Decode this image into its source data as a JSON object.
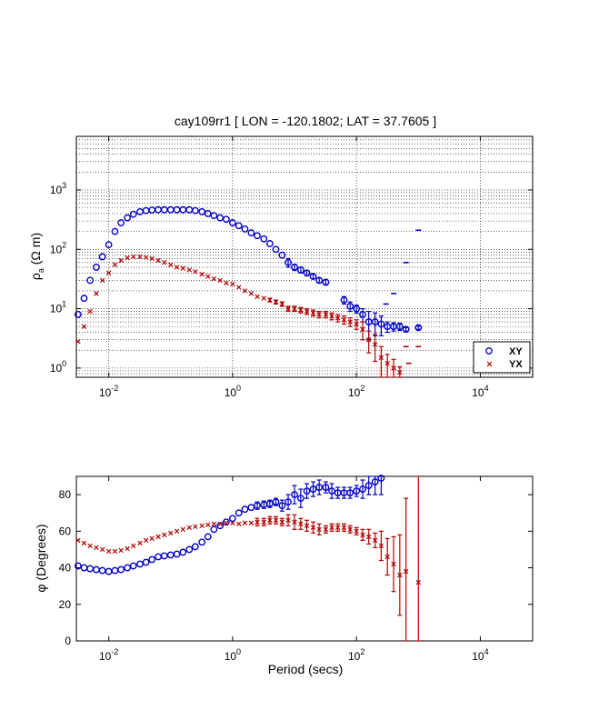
{
  "colors": {
    "xy": "#0000c8",
    "yx": "#b40000",
    "grid": "#000000"
  },
  "chart_data": [
    {
      "type": "scatter",
      "title": "cay109rr1 [ LON = -120.1802; LAT = 37.7605 ]",
      "xlabel": "",
      "ylabel_main": "ρ",
      "ylabel_sub": "a",
      "ylabel_unit": "(Ω m)",
      "xscale": "log",
      "yscale": "log",
      "xlim": [
        0.003,
        70000
      ],
      "ylim": [
        0.7,
        8000
      ],
      "grid": true,
      "x_ticks": [
        {
          "value": 0.01,
          "base": "10",
          "exp": "-2"
        },
        {
          "value": 1,
          "base": "10",
          "exp": "0"
        },
        {
          "value": 100,
          "base": "10",
          "exp": "2"
        },
        {
          "value": 10000,
          "base": "10",
          "exp": "4"
        }
      ],
      "y_ticks": [
        {
          "value": 1,
          "base": "10",
          "exp": "0"
        },
        {
          "value": 10,
          "base": "10",
          "exp": "1"
        },
        {
          "value": 100,
          "base": "10",
          "exp": "2"
        },
        {
          "value": 1000,
          "base": "10",
          "exp": "3"
        }
      ],
      "legend": {
        "position": "bottom-right",
        "entries": [
          "XY",
          "YX"
        ]
      },
      "series": [
        {
          "name": "XY",
          "marker": "circle",
          "x": [
            0.0032,
            0.004,
            0.005,
            0.0063,
            0.0079,
            0.01,
            0.0126,
            0.0158,
            0.02,
            0.025,
            0.032,
            0.04,
            0.05,
            0.063,
            0.079,
            0.1,
            0.126,
            0.158,
            0.2,
            0.25,
            0.32,
            0.4,
            0.5,
            0.63,
            0.79,
            1.0,
            1.26,
            1.58,
            2.0,
            2.5,
            3.2,
            4.0,
            5.0,
            6.3,
            7.9,
            10,
            12.6,
            15.8,
            20,
            25,
            32,
            63,
            79,
            100,
            126,
            158,
            200,
            251,
            316,
            398,
            501,
            631,
            1000
          ],
          "y": [
            8,
            15,
            30,
            50,
            75,
            120,
            200,
            280,
            340,
            390,
            430,
            450,
            460,
            465,
            465,
            465,
            465,
            465,
            465,
            450,
            430,
            400,
            370,
            340,
            320,
            280,
            250,
            220,
            190,
            170,
            150,
            125,
            100,
            80,
            60,
            50,
            45,
            40,
            35,
            30,
            28,
            14,
            11,
            10,
            8,
            6,
            6,
            5.5,
            5,
            5,
            5,
            4.5,
            4.8
          ],
          "err": [
            0,
            0,
            0,
            0,
            0,
            0,
            0,
            0,
            0,
            0,
            0,
            0,
            0,
            0,
            0,
            0,
            0,
            0,
            0,
            0,
            0,
            0,
            0,
            0,
            0,
            0,
            0,
            0,
            0,
            0,
            0,
            0,
            0,
            0,
            10,
            6,
            5,
            4,
            3,
            3,
            3,
            2,
            2,
            1.5,
            2,
            3,
            2.5,
            2,
            1,
            0.8,
            0.7,
            0.3,
            0.3
          ]
        },
        {
          "name": "YX",
          "marker": "x",
          "x": [
            0.0032,
            0.004,
            0.005,
            0.0063,
            0.0079,
            0.01,
            0.0126,
            0.0158,
            0.02,
            0.025,
            0.032,
            0.04,
            0.05,
            0.063,
            0.079,
            0.1,
            0.126,
            0.158,
            0.2,
            0.25,
            0.32,
            0.4,
            0.5,
            0.63,
            0.79,
            1.0,
            1.26,
            1.58,
            2.0,
            2.5,
            3.2,
            4.0,
            5.0,
            6.3,
            7.9,
            10,
            12.6,
            15.8,
            20,
            25,
            32,
            40,
            50,
            63,
            79,
            100,
            126,
            158,
            200,
            251,
            316,
            398,
            501
          ],
          "y": [
            2.8,
            5,
            9,
            18,
            30,
            40,
            55,
            65,
            72,
            75,
            75,
            73,
            70,
            65,
            60,
            55,
            50,
            48,
            45,
            42,
            38,
            35,
            32,
            30,
            27,
            26,
            23,
            20,
            18,
            16,
            15,
            14,
            13,
            12,
            10,
            10,
            9.5,
            9,
            8.5,
            8,
            8,
            7.5,
            7,
            6.5,
            6,
            5.5,
            4.5,
            3,
            2.5,
            1.5,
            1.2,
            1.0,
            0.85
          ],
          "err": [
            0,
            0,
            0,
            0,
            0,
            0,
            0,
            0,
            0,
            0,
            0,
            0,
            0,
            0,
            0,
            0,
            0,
            0,
            0,
            0,
            0,
            0,
            0,
            0,
            0,
            0,
            0,
            0,
            0,
            0,
            0,
            1,
            1,
            1,
            1,
            1,
            1,
            1,
            1,
            1,
            1,
            1,
            1,
            1,
            1,
            1,
            1.5,
            1.2,
            1.2,
            0.8,
            0.5,
            0.4,
            0.2
          ]
        }
      ],
      "stray_marks": [
        {
          "series": "XY",
          "x": 630,
          "y": 60
        },
        {
          "series": "XY",
          "x": 1000,
          "y": 210
        },
        {
          "series": "XY",
          "x": 400,
          "y": 18
        },
        {
          "series": "XY",
          "x": 300,
          "y": 12
        },
        {
          "series": "YX",
          "x": 630,
          "y": 2.3
        },
        {
          "series": "YX",
          "x": 1000,
          "y": 2.3
        },
        {
          "series": "YX",
          "x": 700,
          "y": 1.2
        }
      ]
    },
    {
      "type": "scatter",
      "title": "",
      "xlabel": "Period (secs)",
      "ylabel": "φ (Degrees)",
      "xscale": "log",
      "xlim": [
        0.003,
        70000
      ],
      "ylim": [
        0,
        90
      ],
      "grid": false,
      "x_ticks": [
        {
          "value": 0.01,
          "base": "10",
          "exp": "-2"
        },
        {
          "value": 1,
          "base": "10",
          "exp": "0"
        },
        {
          "value": 100,
          "base": "10",
          "exp": "2"
        },
        {
          "value": 10000,
          "base": "10",
          "exp": "4"
        }
      ],
      "y_ticks": [
        0,
        20,
        40,
        60,
        80
      ],
      "series": [
        {
          "name": "XY",
          "marker": "circle",
          "x": [
            0.0032,
            0.004,
            0.005,
            0.0063,
            0.0079,
            0.01,
            0.0126,
            0.0158,
            0.02,
            0.025,
            0.032,
            0.04,
            0.05,
            0.063,
            0.079,
            0.1,
            0.126,
            0.158,
            0.2,
            0.25,
            0.32,
            0.4,
            0.5,
            0.63,
            0.79,
            1.0,
            1.26,
            1.58,
            2.0,
            2.5,
            3.2,
            4.0,
            5.0,
            6.3,
            7.9,
            10,
            12.6,
            15.8,
            20,
            25,
            32,
            40,
            50,
            63,
            79,
            100,
            126,
            158,
            200,
            251
          ],
          "y": [
            41,
            40,
            39.5,
            39,
            38.5,
            38,
            38.5,
            39,
            40,
            41,
            42,
            43,
            44.5,
            46,
            46.5,
            47,
            47.5,
            48.5,
            50,
            51.5,
            54,
            57,
            61,
            63,
            65,
            67,
            70,
            72,
            73,
            74,
            74.5,
            75,
            76,
            74,
            76,
            80,
            78,
            82,
            83,
            84,
            84,
            82,
            81,
            81,
            81,
            82,
            83,
            85,
            87,
            89
          ],
          "err": [
            0,
            0,
            0,
            0,
            0,
            0,
            0,
            0,
            0,
            0,
            0,
            0,
            0,
            0,
            0,
            0,
            0,
            0,
            0,
            0,
            0,
            0,
            0,
            0,
            0,
            0,
            0,
            0,
            0,
            2,
            2,
            2,
            2,
            3,
            4,
            5,
            5,
            4,
            4,
            4,
            3,
            4,
            3,
            3,
            3,
            3,
            5,
            5,
            7,
            9
          ]
        },
        {
          "name": "YX",
          "marker": "x",
          "x": [
            0.0032,
            0.004,
            0.005,
            0.0063,
            0.0079,
            0.01,
            0.0126,
            0.0158,
            0.02,
            0.025,
            0.032,
            0.04,
            0.05,
            0.063,
            0.079,
            0.1,
            0.126,
            0.158,
            0.2,
            0.25,
            0.32,
            0.4,
            0.5,
            0.63,
            0.79,
            1.0,
            1.26,
            1.58,
            2.0,
            2.5,
            3.2,
            4.0,
            5.0,
            6.3,
            7.9,
            10,
            12.6,
            15.8,
            20,
            25,
            32,
            40,
            50,
            63,
            79,
            100,
            126,
            158,
            200,
            251,
            316,
            398,
            501,
            631,
            1000
          ],
          "y": [
            55,
            53.5,
            52,
            51,
            50,
            49,
            49,
            49.5,
            50.5,
            52,
            53.5,
            55,
            56,
            57,
            58,
            59,
            60,
            61,
            62,
            62.5,
            63,
            63.5,
            64,
            64,
            64.5,
            64.5,
            64,
            64.5,
            64.5,
            65,
            65,
            66,
            66,
            65,
            66,
            65,
            64,
            63,
            62,
            61,
            61,
            62,
            62,
            62,
            61,
            60,
            58,
            57,
            55,
            52,
            46,
            42,
            36,
            38,
            32
          ],
          "err": [
            0,
            0,
            0,
            0,
            0,
            0,
            0,
            0,
            0,
            0,
            0,
            0,
            0,
            0,
            0,
            0,
            0,
            0,
            0,
            0,
            0,
            0,
            0,
            0,
            0,
            0,
            0,
            0,
            0,
            2,
            2,
            2,
            2,
            2,
            3,
            4,
            3,
            3,
            3,
            3,
            2,
            2,
            2,
            2,
            2,
            2,
            3,
            4,
            4,
            8,
            10,
            15,
            22,
            40,
            60
          ]
        }
      ]
    }
  ]
}
